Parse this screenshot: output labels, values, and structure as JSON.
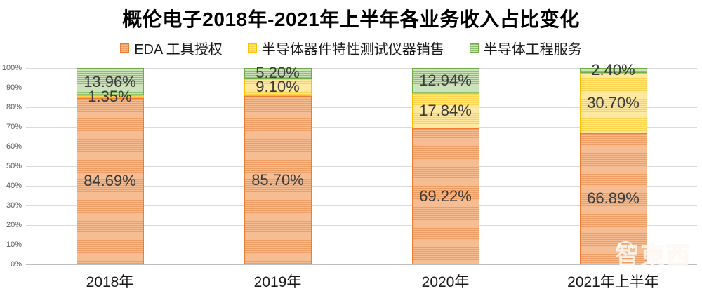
{
  "page": {
    "watermark_text": "智東西",
    "watermark_subtext": "· · · · · · · ·"
  },
  "chart_data": {
    "type": "bar",
    "stacked": true,
    "title": "概伦电子2018年-2021年上半年各业务收入占比变化",
    "categories": [
      "2018年",
      "2019年",
      "2020年",
      "2021年上半年"
    ],
    "series": [
      {
        "name": "EDA 工具授权",
        "color": "#ED7D31",
        "pattern_bg": "#F7BD92",
        "pattern_stripe": "#EF9D62",
        "values": [
          84.69,
          85.7,
          69.22,
          66.89
        ],
        "data_labels": [
          "84.69%",
          "85.70%",
          "69.22%",
          "66.89%"
        ]
      },
      {
        "name": "半导体器件特性测试仪器销售",
        "color": "#FFC000",
        "pattern_bg": "#FFE9A1",
        "pattern_stripe": "#FFD24D",
        "values": [
          1.35,
          9.1,
          17.84,
          30.7
        ],
        "data_labels": [
          "1.35%",
          "9.10%",
          "17.84%",
          "30.70%"
        ]
      },
      {
        "name": "半导体工程服务",
        "color": "#70AD47",
        "pattern_bg": "#CBE2BA",
        "pattern_stripe": "#8FC06E",
        "values": [
          13.96,
          5.2,
          12.94,
          2.4
        ],
        "data_labels": [
          "13.96%",
          "5.20%",
          "12.94%",
          "2.40%"
        ]
      }
    ],
    "ylim": [
      0,
      100
    ],
    "y_ticks": [
      "0%",
      "10%",
      "20%",
      "30%",
      "40%",
      "50%",
      "60%",
      "70%",
      "80%",
      "90%",
      "100%"
    ],
    "grid": true,
    "legend_position": "top",
    "axis_color": "#BFBFBF",
    "gridline_color": "#D9D9D9"
  }
}
